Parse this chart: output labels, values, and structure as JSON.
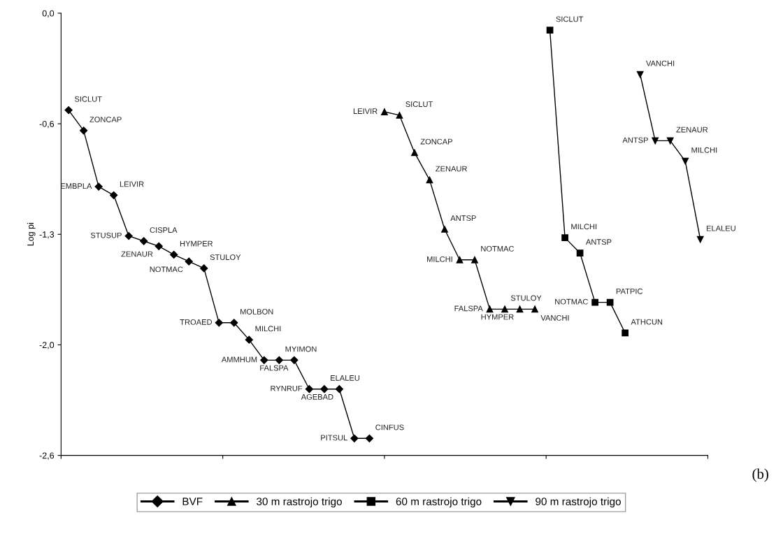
{
  "chart_data": {
    "type": "line",
    "ylabel": "Log pi",
    "categories": [
      null,
      null,
      null,
      null,
      null,
      null,
      null,
      null,
      null,
      null,
      null,
      null,
      null,
      null,
      null,
      null,
      null,
      null,
      null,
      null,
      null,
      null,
      null,
      null,
      null,
      null,
      null,
      null,
      null,
      null,
      null,
      null,
      null,
      null,
      null,
      null,
      null,
      null,
      null,
      null,
      null,
      null,
      null
    ],
    "ylim": [
      -2.6,
      0
    ],
    "yticks": [
      {
        "value": 0,
        "label": "0,0"
      },
      {
        "value": -0.65,
        "label": "-0,6"
      },
      {
        "value": -1.3,
        "label": "-1,3"
      },
      {
        "value": -1.95,
        "label": "-2,0"
      },
      {
        "value": -2.6,
        "label": "-2,6"
      }
    ],
    "tick_labels": "y",
    "legend": "bottom",
    "line_style": "solid",
    "series": [
      {
        "name": "BVF",
        "color": "#000000",
        "marker": "diamond",
        "values": [
          -0.57,
          -0.69,
          -1.02,
          -1.07,
          -1.31,
          -1.34,
          -1.37,
          -1.42,
          -1.46,
          -1.5,
          -1.82,
          -1.82,
          -1.92,
          -2.04,
          -2.04,
          -2.04,
          -2.21,
          -2.21,
          -2.21,
          -2.5,
          -2.5,
          null,
          null,
          null,
          null,
          null,
          null,
          null,
          null,
          null,
          null,
          null,
          null,
          null,
          null,
          null,
          null,
          null,
          null,
          null,
          null,
          null,
          null
        ],
        "value_labels": [
          "SICLUT",
          "ZONCAP",
          "EMBPLA",
          "LEIVIR",
          "STUSUP",
          "CISPLA",
          "ZENAUR",
          "HYMPER",
          "NOTMAC",
          "STULOY",
          "TROAED",
          "MOLBON",
          "MILCHI",
          "AMMHUM",
          "MYIMON",
          "FALSPA",
          "RYNRUF",
          "ELALEU",
          "AGEBAD",
          "PITSUL",
          "CINFUS",
          null,
          null,
          null,
          null,
          null,
          null,
          null,
          null,
          null,
          null,
          null,
          null,
          null,
          null,
          null,
          null,
          null,
          null,
          null,
          null,
          null,
          null
        ]
      },
      {
        "name": "30 m rastrojo trigo",
        "color": "#000000",
        "marker": "triangle",
        "values": [
          null,
          null,
          null,
          null,
          null,
          null,
          null,
          null,
          null,
          null,
          null,
          null,
          null,
          null,
          null,
          null,
          null,
          null,
          null,
          null,
          null,
          -0.58,
          -0.6,
          -0.82,
          -0.98,
          -1.27,
          -1.45,
          -1.45,
          -1.74,
          -1.74,
          -1.74,
          -1.74,
          null,
          null,
          null,
          null,
          null,
          null,
          null,
          null,
          null,
          null,
          null
        ],
        "value_labels": [
          null,
          null,
          null,
          null,
          null,
          null,
          null,
          null,
          null,
          null,
          null,
          null,
          null,
          null,
          null,
          null,
          null,
          null,
          null,
          null,
          null,
          "LEIVIR",
          "SICLUT",
          "ZONCAP",
          "ZENAUR",
          "ANTSP",
          "MILCHI",
          "NOTMAC",
          "FALSPA",
          "STULOY",
          "HYMPER",
          "VANCHI",
          null,
          null,
          null,
          null,
          null,
          null,
          null,
          null,
          null,
          null,
          null
        ]
      },
      {
        "name": "60 m rastrojo trigo",
        "color": "#000000",
        "marker": "square",
        "values": [
          null,
          null,
          null,
          null,
          null,
          null,
          null,
          null,
          null,
          null,
          null,
          null,
          null,
          null,
          null,
          null,
          null,
          null,
          null,
          null,
          null,
          null,
          null,
          null,
          null,
          null,
          null,
          null,
          null,
          null,
          null,
          null,
          -0.1,
          -1.32,
          -1.41,
          -1.7,
          -1.7,
          -1.88,
          null,
          null,
          null,
          null,
          null
        ],
        "value_labels": [
          null,
          null,
          null,
          null,
          null,
          null,
          null,
          null,
          null,
          null,
          null,
          null,
          null,
          null,
          null,
          null,
          null,
          null,
          null,
          null,
          null,
          null,
          null,
          null,
          null,
          null,
          null,
          null,
          null,
          null,
          null,
          null,
          "SICLUT",
          "MILCHI",
          "ANTSP",
          "NOTMAC",
          "PATPIC",
          "ATHCUN",
          null,
          null,
          null,
          null,
          null
        ]
      },
      {
        "name": "90 m rastrojo trigo",
        "color": "#000000",
        "marker": "triangle_down",
        "values": [
          null,
          null,
          null,
          null,
          null,
          null,
          null,
          null,
          null,
          null,
          null,
          null,
          null,
          null,
          null,
          null,
          null,
          null,
          null,
          null,
          null,
          null,
          null,
          null,
          null,
          null,
          null,
          null,
          null,
          null,
          null,
          null,
          null,
          null,
          null,
          null,
          null,
          null,
          -0.36,
          -0.75,
          -0.75,
          -0.87,
          -1.33
        ],
        "value_labels": [
          null,
          null,
          null,
          null,
          null,
          null,
          null,
          null,
          null,
          null,
          null,
          null,
          null,
          null,
          null,
          null,
          null,
          null,
          null,
          null,
          null,
          null,
          null,
          null,
          null,
          null,
          null,
          null,
          null,
          null,
          null,
          null,
          null,
          null,
          null,
          null,
          null,
          null,
          "VANCHI",
          "ANTSP",
          "ZENAUR",
          "MILCHI",
          "ELALEU"
        ]
      }
    ],
    "annotations": [
      "(b)"
    ]
  }
}
